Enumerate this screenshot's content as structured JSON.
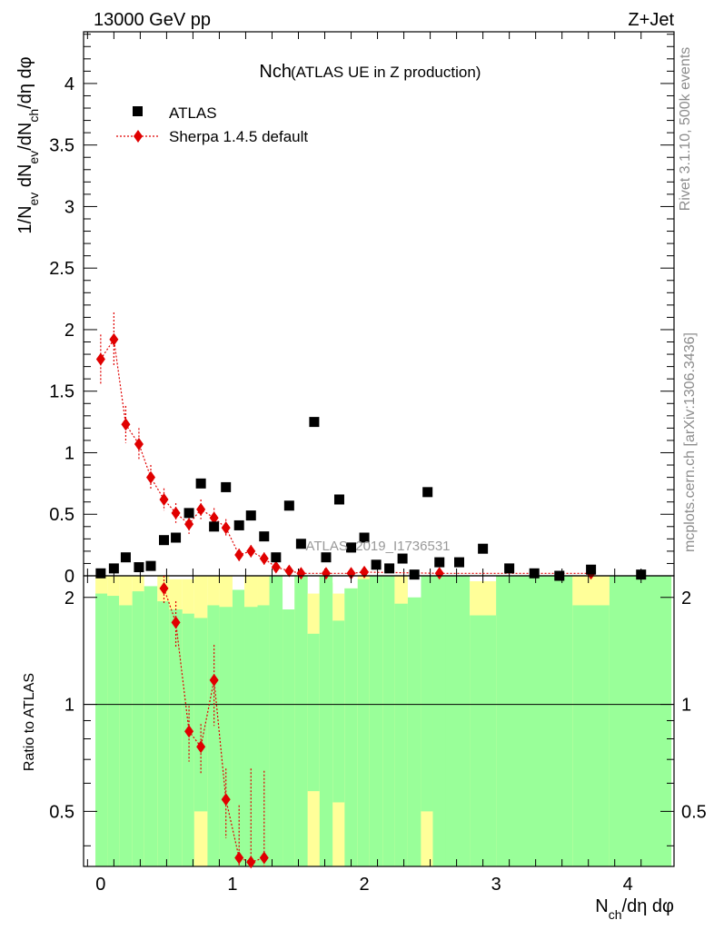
{
  "header": {
    "left": "13000 GeV pp",
    "right": "Z+Jet"
  },
  "side_text": {
    "rivet": "Rivet 3.1.10,  500k events",
    "site": "mcplots.cern.ch [arXiv:1306.3436]"
  },
  "plot_title": {
    "main": "Nch",
    "sub": "(ATLAS UE in Z production)"
  },
  "watermark": "ATLAS_2019_I1736531",
  "legend": {
    "data_label": "ATLAS",
    "mc_label": "Sherpa 1.4.5 default"
  },
  "colors": {
    "data": "#000000",
    "mc": "#e00000",
    "band_outer": "#ffff99",
    "band_inner": "#99ff99"
  },
  "chart_data": [
    {
      "type": "scatter",
      "panel": "main",
      "ylabel": "1/N_ev dN_ev/dN_ch/dη dφ",
      "xlim": [
        -0.13,
        4.35
      ],
      "ylim": [
        0,
        4.42
      ],
      "yticks": [
        "0",
        "0.5",
        "1",
        "1.5",
        "2",
        "2.5",
        "3",
        "3.5",
        "4"
      ],
      "series": [
        {
          "name": "ATLAS",
          "x": [
            0.0,
            0.1,
            0.19,
            0.29,
            0.38,
            0.48,
            0.57,
            0.67,
            0.76,
            0.86,
            0.95,
            1.05,
            1.14,
            1.24,
            1.33,
            1.43,
            1.52,
            1.62,
            1.71,
            1.81,
            1.9,
            2.0,
            2.09,
            2.19,
            2.29,
            2.38,
            2.48,
            2.57,
            2.72,
            2.9,
            3.1,
            3.29,
            3.48,
            3.72,
            4.1
          ],
          "y": [
            0.02,
            0.06,
            0.15,
            0.07,
            0.08,
            0.29,
            0.31,
            0.51,
            0.75,
            0.4,
            0.72,
            0.41,
            0.49,
            0.32,
            0.15,
            0.57,
            0.26,
            1.25,
            0.15,
            0.62,
            0.23,
            0.31,
            0.09,
            0.06,
            0.14,
            0.01,
            0.68,
            0.11,
            0.11,
            0.22,
            0.06,
            0.02,
            0.0,
            0.05,
            0.01
          ]
        },
        {
          "name": "Sherpa 1.4.5 default",
          "x": [
            0.0,
            0.1,
            0.19,
            0.29,
            0.38,
            0.48,
            0.57,
            0.67,
            0.76,
            0.86,
            0.95,
            1.05,
            1.14,
            1.24,
            1.33,
            1.43,
            1.52,
            1.71,
            1.9,
            2.0,
            2.57,
            3.72
          ],
          "y": [
            1.76,
            1.92,
            1.23,
            1.07,
            0.8,
            0.62,
            0.51,
            0.42,
            0.54,
            0.47,
            0.39,
            0.17,
            0.2,
            0.14,
            0.07,
            0.04,
            0.02,
            0.02,
            0.02,
            0.03,
            0.02,
            0.02
          ],
          "yerr": [
            0.2,
            0.22,
            0.15,
            0.13,
            0.1,
            0.09,
            0.08,
            0.08,
            0.08,
            0.08,
            0.07,
            0.05,
            0.05,
            0.05,
            0.03,
            0.02,
            0.02,
            0.02,
            0.02,
            0.02,
            0.02,
            0.02
          ]
        }
      ]
    },
    {
      "type": "scatter",
      "panel": "ratio",
      "ylabel": "Ratio to ATLAS",
      "xlabel": "N_ch/dη dφ",
      "xlim": [
        -0.13,
        4.35
      ],
      "ylim": [
        0.35,
        2.3
      ],
      "yticks": [
        "0.5",
        "1",
        "2"
      ],
      "xticks": [
        "0",
        "1",
        "2",
        "3",
        "4"
      ],
      "reference_line": 1,
      "band_bins": [
        {
          "x0": -0.04,
          "x1": 0.05,
          "outer_top": 2.3,
          "inner_top": 2.05
        },
        {
          "x0": 0.05,
          "x1": 0.14,
          "outer_top": 2.3,
          "inner_top": 2.02
        },
        {
          "x0": 0.14,
          "x1": 0.24,
          "outer_top": 2.3,
          "inner_top": 1.9
        },
        {
          "x0": 0.24,
          "x1": 0.33,
          "outer_top": 2.3,
          "inner_top": 2.08
        },
        {
          "x0": 0.33,
          "x1": 0.43,
          "outer_top": 2.15,
          "inner_top": 2.15
        },
        {
          "x0": 0.43,
          "x1": 0.52,
          "outer_top": 2.3,
          "inner_top": 1.95
        },
        {
          "x0": 0.52,
          "x1": 0.62,
          "outer_top": 2.25,
          "inner_top": 1.85
        },
        {
          "x0": 0.62,
          "x1": 0.71,
          "outer_top": 2.25,
          "inner_top": 1.8
        },
        {
          "x0": 0.71,
          "x1": 0.81,
          "outer_top": 2.3,
          "inner_top": 1.75
        },
        {
          "x0": 0.81,
          "x1": 0.9,
          "outer_top": 2.3,
          "inner_top": 1.9
        },
        {
          "x0": 0.9,
          "x1": 1.0,
          "outer_top": 2.3,
          "inner_top": 1.88
        },
        {
          "x0": 1.0,
          "x1": 1.09,
          "outer_top": 2.1,
          "inner_top": 2.1
        },
        {
          "x0": 1.09,
          "x1": 1.19,
          "outer_top": 2.3,
          "inner_top": 1.88
        },
        {
          "x0": 1.19,
          "x1": 1.28,
          "outer_top": 2.3,
          "inner_top": 1.9
        },
        {
          "x0": 1.28,
          "x1": 1.38,
          "outer_top": 2.3,
          "inner_top": 2.3
        },
        {
          "x0": 1.38,
          "x1": 1.47,
          "outer_top": 2.3,
          "inner_top": 2.05
        },
        {
          "x0": 1.47,
          "x1": 1.57,
          "outer_top": 2.3,
          "inner_top": 2.3
        },
        {
          "x0": 1.57,
          "x1": 1.66,
          "outer_top": 2.05,
          "inner_top": 1.58
        },
        {
          "x0": 1.66,
          "x1": 1.76,
          "outer_top": 2.3,
          "inner_top": 2.3
        },
        {
          "x0": 1.76,
          "x1": 1.85,
          "outer_top": 2.05,
          "inner_top": 1.72
        },
        {
          "x0": 1.85,
          "x1": 1.95,
          "outer_top": 2.12,
          "inner_top": 2.12
        },
        {
          "x0": 1.95,
          "x1": 2.04,
          "outer_top": 2.3,
          "inner_top": 2.25
        },
        {
          "x0": 2.04,
          "x1": 2.14,
          "outer_top": 2.3,
          "inner_top": 2.3
        },
        {
          "x0": 2.14,
          "x1": 2.23,
          "outer_top": 2.3,
          "inner_top": 2.3
        },
        {
          "x0": 2.23,
          "x1": 2.33,
          "outer_top": 2.3,
          "inner_top": 1.92
        },
        {
          "x0": 2.33,
          "x1": 2.43,
          "outer_top": 2.3,
          "inner_top": 2.3
        },
        {
          "x0": 2.43,
          "x1": 2.52,
          "outer_top": 2.3,
          "inner_top": 2.3
        },
        {
          "x0": 2.52,
          "x1": 2.62,
          "outer_top": 2.3,
          "inner_top": 2.3
        },
        {
          "x0": 2.62,
          "x1": 2.8,
          "outer_top": 2.3,
          "inner_top": 2.3
        },
        {
          "x0": 2.8,
          "x1": 3.0,
          "outer_top": 2.22,
          "inner_top": 1.78
        },
        {
          "x0": 3.0,
          "x1": 3.58,
          "outer_top": 2.3,
          "inner_top": 2.3
        },
        {
          "x0": 3.58,
          "x1": 3.86,
          "outer_top": 2.3,
          "inner_top": 1.9
        },
        {
          "x0": 3.86,
          "x1": 4.33,
          "outer_top": 2.3,
          "inner_top": 2.3
        }
      ],
      "band_holes": [
        {
          "x0": 1.38,
          "x1": 1.47,
          "top": 2.3,
          "bottom": 1.85
        },
        {
          "x0": 1.76,
          "x1": 1.85,
          "top": 2.3,
          "bottom": 2.2
        },
        {
          "x0": 2.33,
          "x1": 2.43,
          "top": 2.3,
          "bottom": 2.0
        }
      ],
      "band_low_yellow": [
        {
          "x0": 0.71,
          "x1": 0.81,
          "top": 0.5
        },
        {
          "x0": 1.57,
          "x1": 1.66,
          "top": 0.57
        },
        {
          "x0": 1.76,
          "x1": 1.85,
          "top": 0.53
        },
        {
          "x0": 2.43,
          "x1": 2.52,
          "top": 0.5
        }
      ],
      "series": [
        {
          "name": "Sherpa 1.4.5 default",
          "x": [
            0.48,
            0.57,
            0.67,
            0.76,
            0.86,
            0.95,
            1.05,
            1.14,
            1.24
          ],
          "y": [
            2.12,
            1.7,
            0.84,
            0.76,
            1.17,
            0.54,
            0.37,
            0.36,
            0.37
          ],
          "yerr": [
            0.2,
            0.25,
            0.15,
            0.12,
            0.3,
            0.12,
            0.15,
            0.3,
            0.28
          ]
        }
      ]
    }
  ]
}
